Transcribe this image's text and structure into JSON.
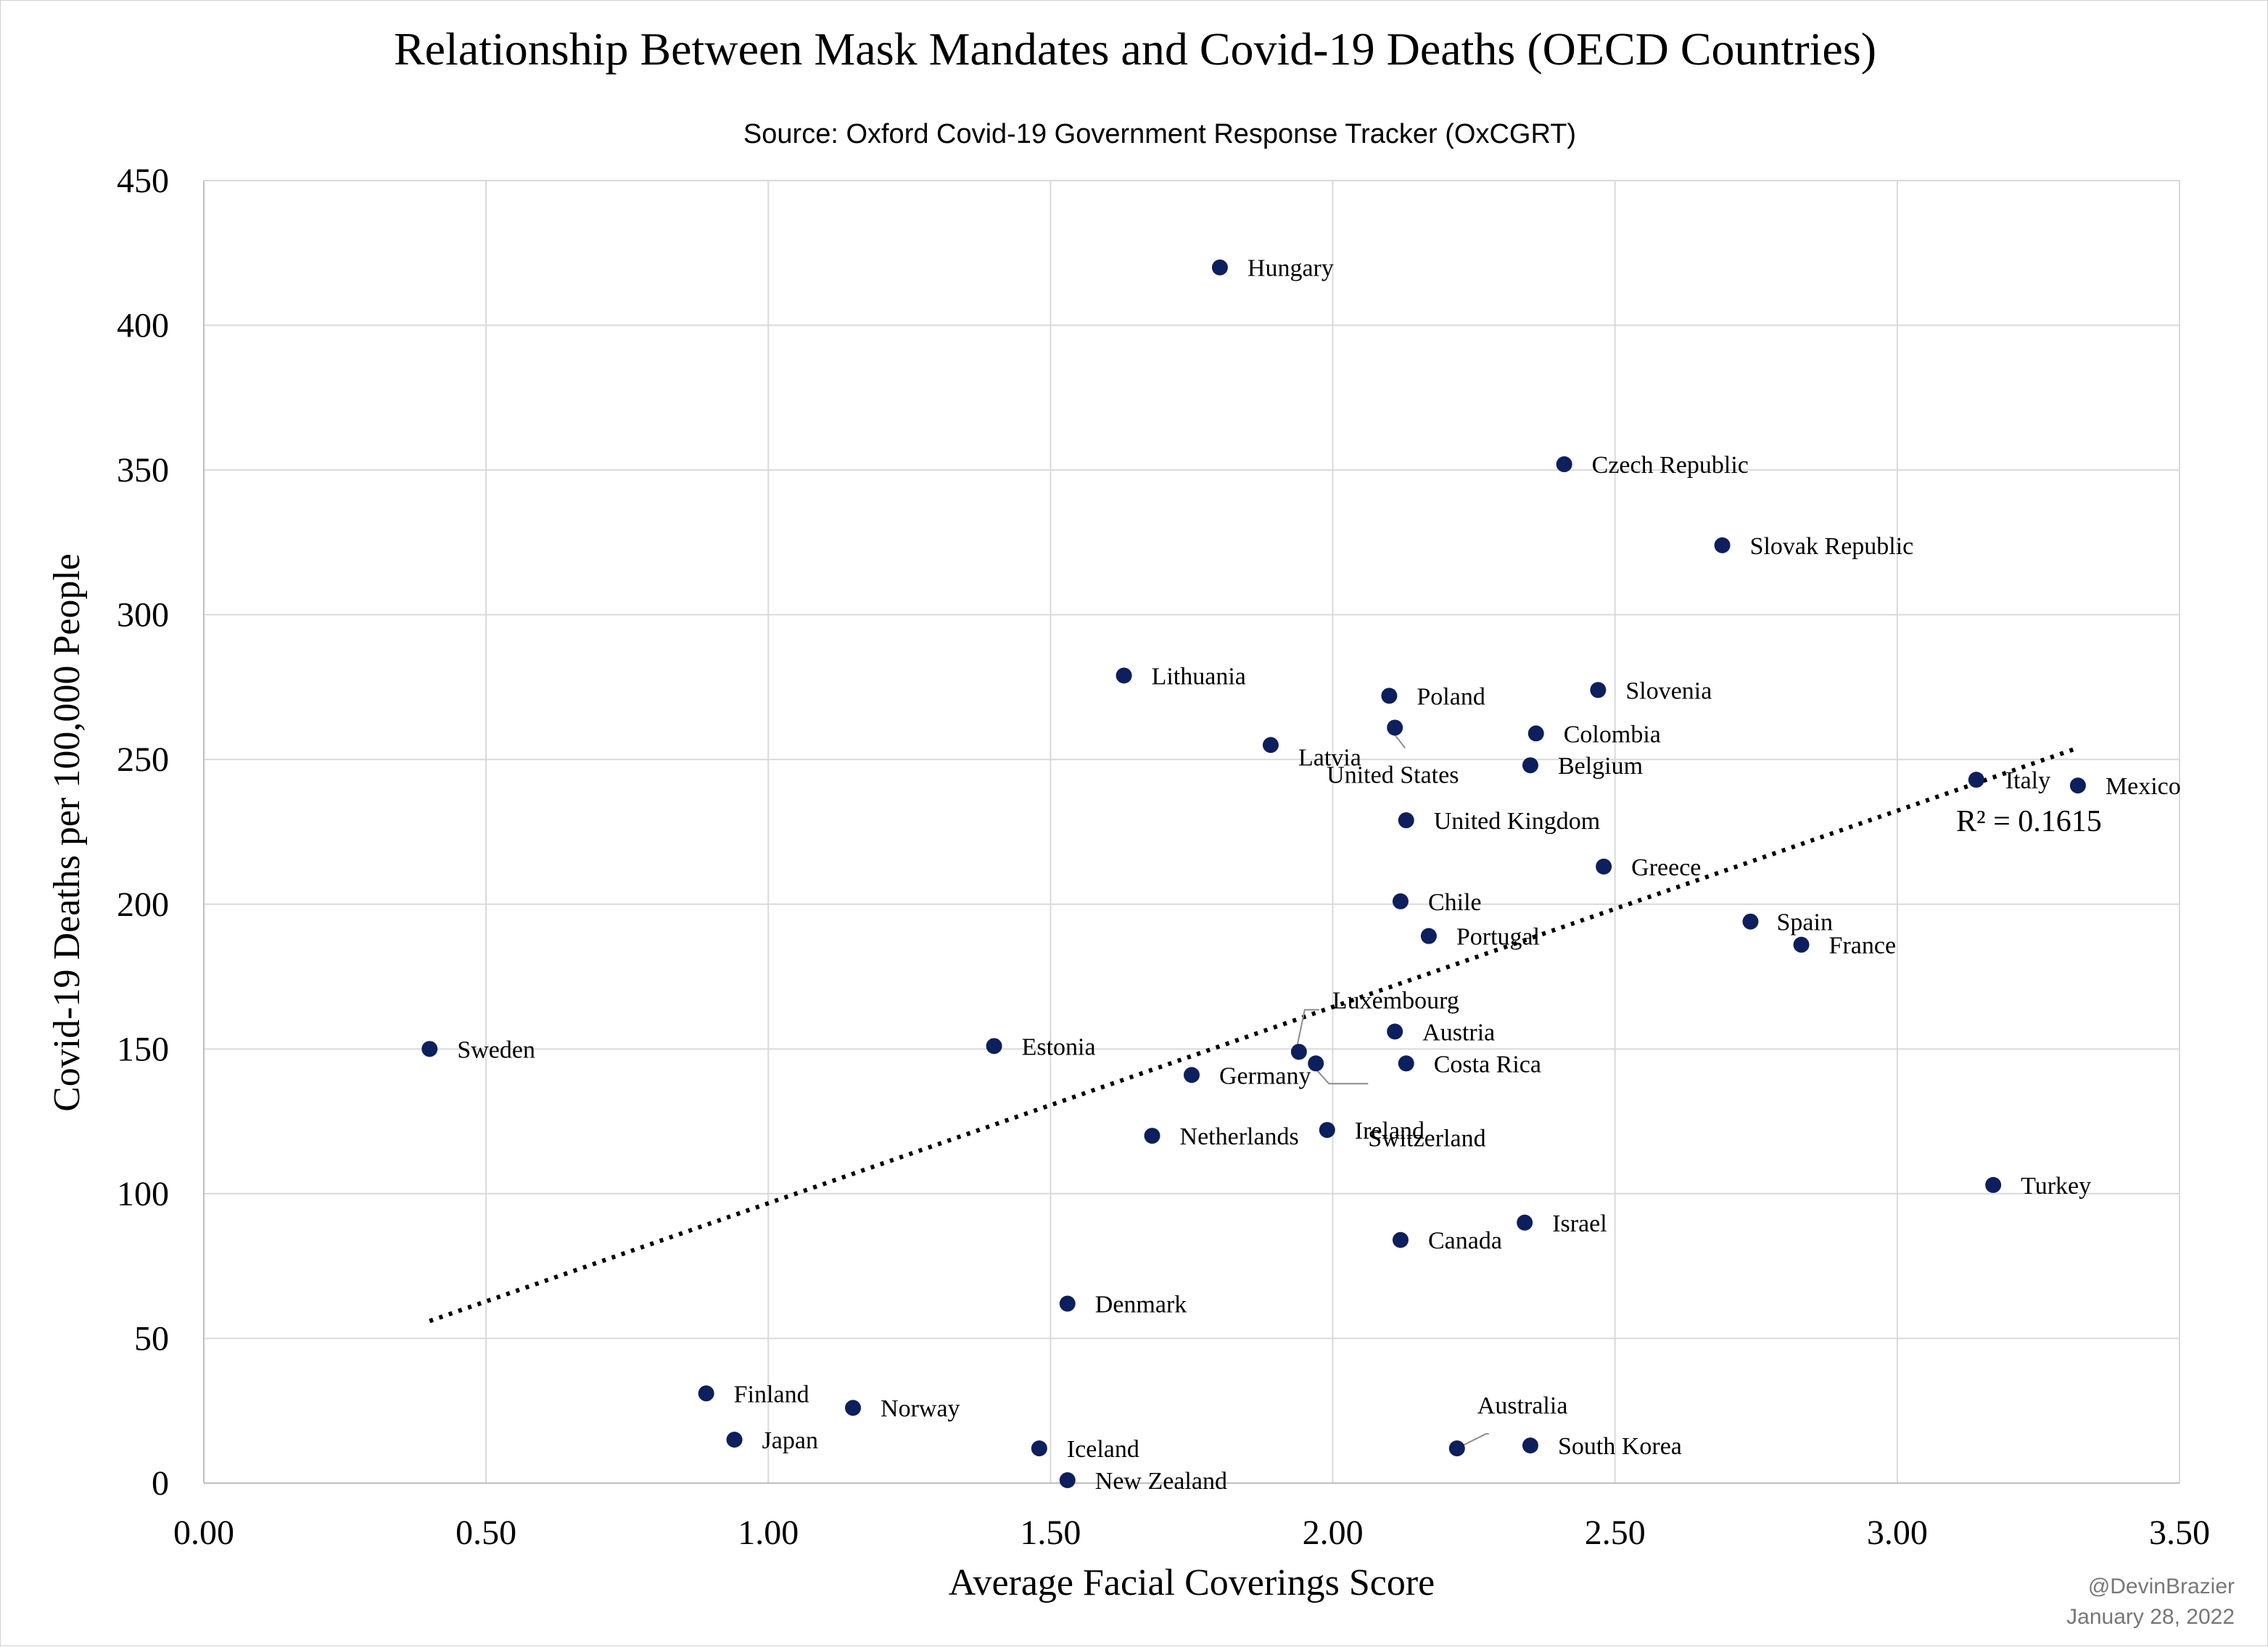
{
  "chart_data": {
    "type": "scatter",
    "title": "Relationship Between Mask Mandates and Covid-19 Deaths (OECD Countries)",
    "subtitle": "Source: Oxford Covid-19 Government Response Tracker (OxCGRT)",
    "xlabel": "Average Facial Coverings Score",
    "ylabel": "Covid-19 Deaths per 100,000 People",
    "xlim": [
      0,
      3.5
    ],
    "ylim": [
      0,
      450
    ],
    "x_ticks": [
      "0.00",
      "0.50",
      "1.00",
      "1.50",
      "2.00",
      "2.50",
      "3.00",
      "3.50"
    ],
    "y_ticks": [
      "0",
      "50",
      "100",
      "150",
      "200",
      "250",
      "300",
      "350",
      "400",
      "450"
    ],
    "grid": true,
    "marker_color": "#0d1f5c",
    "points": [
      {
        "name": "Hungary",
        "x": 1.8,
        "y": 420
      },
      {
        "name": "Czech Republic",
        "x": 2.41,
        "y": 352
      },
      {
        "name": "Slovak Republic",
        "x": 2.69,
        "y": 324
      },
      {
        "name": "Lithuania",
        "x": 1.63,
        "y": 279
      },
      {
        "name": "Poland",
        "x": 2.1,
        "y": 272
      },
      {
        "name": "Slovenia",
        "x": 2.47,
        "y": 274
      },
      {
        "name": "United States",
        "x": 2.11,
        "y": 261
      },
      {
        "name": "Colombia",
        "x": 2.36,
        "y": 259
      },
      {
        "name": "Latvia",
        "x": 1.89,
        "y": 255
      },
      {
        "name": "Belgium",
        "x": 2.35,
        "y": 248
      },
      {
        "name": "Italy",
        "x": 3.14,
        "y": 243
      },
      {
        "name": "Mexico",
        "x": 3.32,
        "y": 241
      },
      {
        "name": "United Kingdom",
        "x": 2.13,
        "y": 229
      },
      {
        "name": "Greece",
        "x": 2.48,
        "y": 213
      },
      {
        "name": "Chile",
        "x": 2.12,
        "y": 201
      },
      {
        "name": "Spain",
        "x": 2.74,
        "y": 194
      },
      {
        "name": "Portugal",
        "x": 2.17,
        "y": 189
      },
      {
        "name": "France",
        "x": 2.83,
        "y": 186
      },
      {
        "name": "Austria",
        "x": 2.11,
        "y": 156
      },
      {
        "name": "Estonia",
        "x": 1.4,
        "y": 151
      },
      {
        "name": "Sweden",
        "x": 0.4,
        "y": 150
      },
      {
        "name": "Luxembourg",
        "x": 1.94,
        "y": 149
      },
      {
        "name": "Switzerland",
        "x": 1.97,
        "y": 145
      },
      {
        "name": "Costa Rica",
        "x": 2.13,
        "y": 145
      },
      {
        "name": "Germany",
        "x": 1.75,
        "y": 141
      },
      {
        "name": "Ireland",
        "x": 1.99,
        "y": 122
      },
      {
        "name": "Netherlands",
        "x": 1.68,
        "y": 120
      },
      {
        "name": "Turkey",
        "x": 3.17,
        "y": 103
      },
      {
        "name": "Israel",
        "x": 2.34,
        "y": 90
      },
      {
        "name": "Canada",
        "x": 2.12,
        "y": 84
      },
      {
        "name": "Denmark",
        "x": 1.53,
        "y": 62
      },
      {
        "name": "Finland",
        "x": 0.89,
        "y": 31
      },
      {
        "name": "Norway",
        "x": 1.15,
        "y": 26
      },
      {
        "name": "Japan",
        "x": 0.94,
        "y": 15
      },
      {
        "name": "Australia",
        "x": 2.22,
        "y": 12
      },
      {
        "name": "South Korea",
        "x": 2.35,
        "y": 13
      },
      {
        "name": "Iceland",
        "x": 1.48,
        "y": 12
      },
      {
        "name": "New Zealand",
        "x": 1.53,
        "y": 1
      }
    ],
    "trendline": {
      "style": "dotted",
      "x": [
        0.4,
        3.32
      ],
      "y": [
        56,
        254
      ],
      "r_squared_label": "R² = 0.1615"
    }
  },
  "credit": {
    "handle": "@DevinBrazier",
    "date": "January 28, 2022"
  }
}
